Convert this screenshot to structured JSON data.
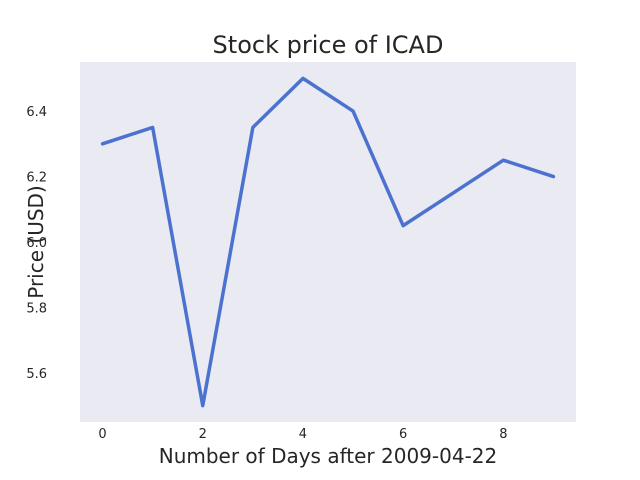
{
  "chart_data": {
    "type": "line",
    "title": "Stock price of ICAD",
    "xlabel": "Number of Days after 2009-04-22",
    "ylabel": "Price (USD)",
    "x": [
      0,
      1,
      2,
      3,
      4,
      5,
      6,
      7,
      8,
      9
    ],
    "series": [
      {
        "values": [
          6.3,
          6.35,
          5.5,
          6.35,
          6.5,
          6.4,
          6.05,
          6.15,
          6.25,
          6.2
        ]
      }
    ],
    "xlim": [
      -0.45,
      9.45
    ],
    "ylim": [
      5.45,
      6.55
    ],
    "xticks": [
      0,
      2,
      4,
      6,
      8
    ],
    "xtick_labels": [
      "0",
      "2",
      "4",
      "6",
      "8"
    ],
    "yticks": [
      5.6,
      5.8,
      6.0,
      6.2,
      6.4
    ],
    "ytick_labels": [
      "5.6",
      "5.8",
      "6.0",
      "6.2",
      "6.4"
    ],
    "grid": false,
    "colors": {
      "plot_background": "#eaeaf2",
      "line": "#4c72d0",
      "text": "#262626"
    }
  }
}
